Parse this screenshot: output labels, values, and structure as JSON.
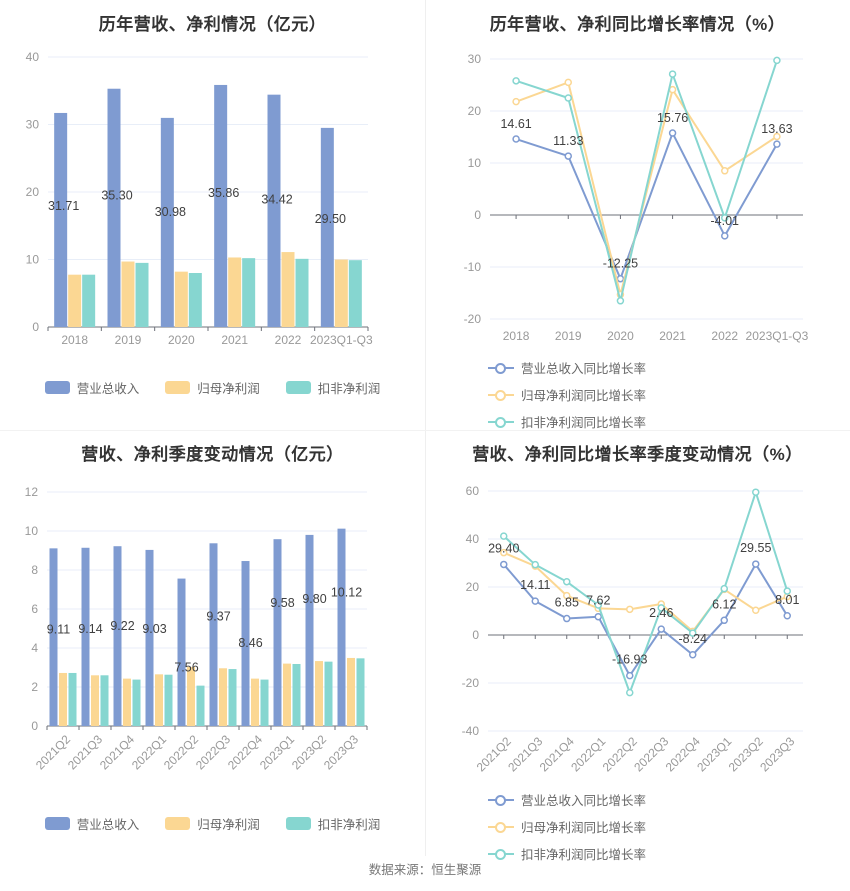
{
  "footer": {
    "source": "数据来源：恒生聚源"
  },
  "palette": {
    "revenue": "#7F9BD1",
    "net_profit": "#FBD793",
    "non_gaap": "#86D6D0",
    "grid": "#E8EEF8",
    "axis": "#6E7079",
    "tick_text": "#999999",
    "label_text": "#404040",
    "legend_text": "#666666",
    "title_text": "#333333"
  },
  "chart_data": [
    {
      "id": "annual-amount",
      "type": "bar",
      "title": "历年营收、净利情况（亿元）",
      "categories": [
        "2018",
        "2019",
        "2020",
        "2021",
        "2022",
        "2023Q1-Q3"
      ],
      "y_ticks": [
        40,
        30,
        20,
        10,
        0
      ],
      "ylim": [
        0,
        40
      ],
      "grid": true,
      "legend_position": "bottom",
      "series": [
        {
          "key": "revenue",
          "name": "营业总收入",
          "values": [
            31.71,
            35.3,
            30.98,
            35.86,
            34.42,
            29.5
          ],
          "labels": [
            "31.71",
            "35.30",
            "30.98",
            "35.86",
            "34.42",
            "29.50"
          ]
        },
        {
          "key": "net_profit",
          "name": "归母净利润",
          "values": [
            7.75,
            9.7,
            8.2,
            10.3,
            11.1,
            10.0
          ]
        },
        {
          "key": "non_gaap",
          "name": "扣非净利润",
          "values": [
            7.75,
            9.5,
            8.0,
            10.2,
            10.1,
            9.9
          ]
        }
      ]
    },
    {
      "id": "annual-growth",
      "type": "line",
      "title": "历年营收、净利同比增长率情况（%）",
      "categories": [
        "2018",
        "2019",
        "2020",
        "2021",
        "2022",
        "2023Q1-Q3"
      ],
      "y_ticks": [
        30,
        20,
        10,
        0,
        -10,
        -20
      ],
      "ylim": [
        -20,
        30
      ],
      "grid": true,
      "legend_position": "bottom",
      "series": [
        {
          "key": "revenue",
          "name": "营业总收入同比增长率",
          "values": [
            14.61,
            11.33,
            -12.25,
            15.76,
            -4.01,
            13.63
          ],
          "labels": [
            "14.61",
            "11.33",
            "-12.25",
            "15.76",
            "-4.01",
            "13.63"
          ]
        },
        {
          "key": "net_profit",
          "name": "归母净利润同比增长率",
          "values": [
            21.8,
            25.5,
            -15.3,
            24.1,
            8.5,
            15.1
          ]
        },
        {
          "key": "non_gaap",
          "name": "扣非净利润同比增长率",
          "values": [
            25.8,
            22.5,
            -16.5,
            27.1,
            -0.55,
            29.73
          ]
        }
      ]
    },
    {
      "id": "quarter-amount",
      "type": "bar",
      "title": "营收、净利季度变动情况（亿元）",
      "categories": [
        "2021Q2",
        "2021Q3",
        "2021Q4",
        "2022Q1",
        "2022Q2",
        "2022Q3",
        "2022Q4",
        "2023Q1",
        "2023Q2",
        "2023Q3"
      ],
      "y_ticks": [
        12,
        10,
        8,
        6,
        4,
        2,
        0
      ],
      "ylim": [
        0,
        12
      ],
      "grid": true,
      "legend_position": "bottom",
      "series": [
        {
          "key": "revenue",
          "name": "营业总收入",
          "values": [
            9.11,
            9.14,
            9.22,
            9.03,
            7.56,
            9.37,
            8.46,
            9.58,
            9.8,
            10.12
          ],
          "labels": [
            "9.11",
            "9.14",
            "9.22",
            "9.03",
            "7.56",
            "9.37",
            "8.46",
            "9.58",
            "9.80",
            "10.12"
          ]
        },
        {
          "key": "net_profit",
          "name": "归母净利润",
          "values": [
            2.72,
            2.6,
            2.43,
            2.65,
            3.03,
            2.96,
            2.43,
            3.2,
            3.33,
            3.49
          ]
        },
        {
          "key": "non_gaap",
          "name": "扣非净利润",
          "values": [
            2.72,
            2.6,
            2.38,
            2.63,
            2.07,
            2.92,
            2.38,
            3.18,
            3.3,
            3.47
          ]
        }
      ]
    },
    {
      "id": "quarter-growth",
      "type": "line",
      "title": "营收、净利同比增长率季度变动情况（%）",
      "categories": [
        "2021Q2",
        "2021Q3",
        "2021Q4",
        "2022Q1",
        "2022Q2",
        "2022Q3",
        "2022Q4",
        "2023Q1",
        "2023Q2",
        "2023Q3"
      ],
      "y_ticks": [
        60,
        40,
        20,
        0,
        -20,
        -40
      ],
      "ylim": [
        -40,
        60
      ],
      "grid": true,
      "legend_position": "bottom",
      "series": [
        {
          "key": "revenue",
          "name": "营业总收入同比增长率",
          "values": [
            29.4,
            14.11,
            6.85,
            7.62,
            -16.93,
            2.46,
            -8.24,
            6.12,
            29.55,
            8.01
          ],
          "labels": [
            "29.40",
            "14.11",
            "6.85",
            "7.62",
            "-16.93",
            "2.46",
            "-8.24",
            "6.12",
            "29.55",
            "8.01"
          ]
        },
        {
          "key": "net_profit",
          "name": "归母净利润同比增长率",
          "values": [
            34.3,
            28.7,
            16.4,
            11.1,
            10.7,
            12.9,
            1.5,
            19.0,
            10.3,
            16.0
          ]
        },
        {
          "key": "non_gaap",
          "name": "扣非净利润同比增长率",
          "values": [
            41.2,
            29.3,
            22.2,
            12.5,
            -24.0,
            11.3,
            0.8,
            19.3,
            59.5,
            18.3
          ]
        }
      ]
    }
  ]
}
